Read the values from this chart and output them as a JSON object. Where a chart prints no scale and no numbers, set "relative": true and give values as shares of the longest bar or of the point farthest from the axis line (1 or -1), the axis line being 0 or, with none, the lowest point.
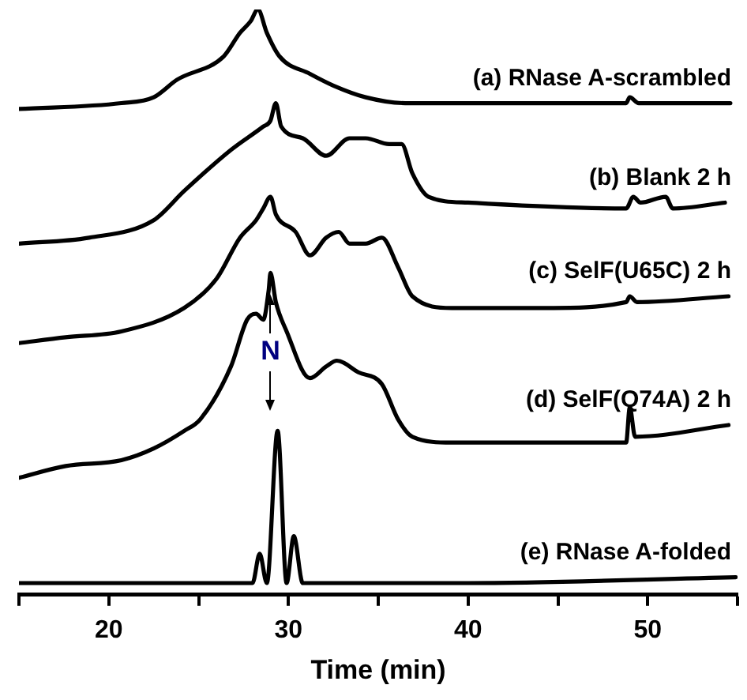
{
  "chart_data": {
    "type": "line",
    "xlabel": "Time (min)",
    "relative": true,
    "xlim": [
      15,
      55
    ],
    "xticks": [
      {
        "value": 15,
        "label": null
      },
      20,
      {
        "value": 25,
        "label": null
      },
      30,
      {
        "value": 35,
        "label": null
      },
      40,
      {
        "value": 45,
        "label": null
      },
      50,
      {
        "value": 55,
        "label": null
      }
    ],
    "grid": false,
    "legend": false,
    "marker": "none",
    "line_style": "solid",
    "tick_labels": "x",
    "annotations": [
      "N"
    ],
    "series": [
      {
        "name": "(a) RNase A-scrambled",
        "color": "#000000",
        "x": [
          15,
          20.7,
          22.5,
          23.8,
          26.4,
          27.3,
          27.9,
          28.3,
          28.8,
          29.5,
          31.2,
          32.5,
          34.3,
          36.5,
          40,
          48.8,
          49.0,
          49.5,
          54.6
        ],
        "values": [
          0.83,
          0.84,
          0.85,
          0.88,
          0.92,
          0.96,
          0.98,
          1.0,
          0.96,
          0.92,
          0.89,
          0.87,
          0.85,
          0.84,
          0.84,
          0.84,
          0.85,
          0.84,
          0.84
        ]
      },
      {
        "name": "(b) Blank 2 h",
        "color": "#000000",
        "x": [
          15,
          18.9,
          22.5,
          24.2,
          26.8,
          28.6,
          29.0,
          29.3,
          29.6,
          30.8,
          32.1,
          33.4,
          34.3,
          35.6,
          36.3,
          36.9,
          37.8,
          40,
          48.8,
          49.2,
          49.6,
          51.0,
          51.4,
          54.3
        ],
        "values": [
          0.6,
          0.61,
          0.64,
          0.69,
          0.76,
          0.8,
          0.81,
          0.84,
          0.8,
          0.78,
          0.75,
          0.78,
          0.78,
          0.77,
          0.77,
          0.72,
          0.68,
          0.67,
          0.66,
          0.68,
          0.67,
          0.68,
          0.66,
          0.67
        ]
      },
      {
        "name": "(c) SelF(U65C) 2 h",
        "color": "#000000",
        "x": [
          15,
          17.6,
          20.7,
          24.2,
          26.0,
          27.3,
          28.2,
          28.6,
          29.0,
          29.3,
          30.4,
          31.2,
          32.1,
          32.8,
          33.4,
          34.3,
          35.2,
          36.1,
          36.9,
          39.1,
          44.4,
          48.8,
          49.0,
          49.4,
          54.5
        ],
        "values": [
          0.43,
          0.44,
          0.45,
          0.49,
          0.54,
          0.61,
          0.64,
          0.66,
          0.68,
          0.65,
          0.62,
          0.58,
          0.61,
          0.62,
          0.6,
          0.6,
          0.61,
          0.56,
          0.51,
          0.49,
          0.49,
          0.5,
          0.51,
          0.5,
          0.51
        ]
      },
      {
        "name": "(d) SelF(Q74A) 2 h",
        "color": "#000000",
        "x": [
          15,
          17.6,
          20.7,
          22.5,
          24.2,
          25.1,
          26.8,
          27.7,
          28.2,
          28.6,
          28.9,
          29.0,
          29.3,
          29.9,
          31.2,
          32.1,
          32.7,
          33.9,
          35.2,
          36.1,
          36.9,
          39.1,
          44.4,
          48.8,
          49.0,
          49.3,
          54.5
        ],
        "values": [
          0.2,
          0.22,
          0.23,
          0.25,
          0.28,
          0.3,
          0.39,
          0.47,
          0.48,
          0.47,
          0.52,
          0.55,
          0.5,
          0.45,
          0.37,
          0.39,
          0.4,
          0.38,
          0.36,
          0.3,
          0.27,
          0.26,
          0.26,
          0.26,
          0.32,
          0.27,
          0.29
        ]
      },
      {
        "name": "(e) RNase A-folded",
        "color": "#000000",
        "x": [
          15,
          28.0,
          28.4,
          28.8,
          29.4,
          29.9,
          30.3,
          30.8,
          40,
          54.9
        ],
        "values": [
          0.02,
          0.02,
          0.07,
          0.02,
          0.28,
          0.02,
          0.1,
          0.02,
          0.02,
          0.03
        ]
      }
    ]
  }
}
